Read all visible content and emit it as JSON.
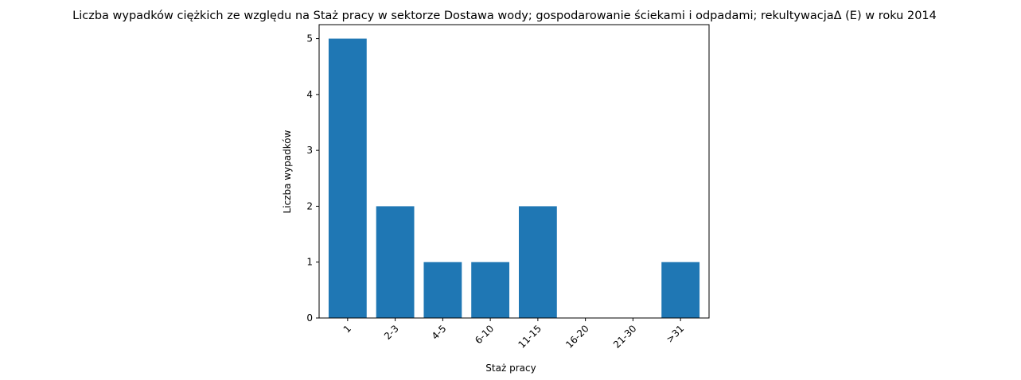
{
  "chart_data": {
    "type": "bar",
    "title": "Liczba wypadków ciężkich ze względu na Staż pracy w sektorze Dostawa wody; gospodarowanie ściekami i odpadami;  rekultywacjaΔ  (E) w roku 2014",
    "xlabel": "Staż pracy",
    "ylabel": "Liczba wypadków",
    "categories": [
      "1",
      "2-3",
      "4-5",
      "6-10",
      "11-15",
      "16-20",
      "21-30",
      ">31"
    ],
    "values": [
      5,
      2,
      1,
      1,
      2,
      0,
      0,
      1
    ],
    "ylim": [
      0,
      5.25
    ],
    "yticks": [
      0,
      1,
      2,
      3,
      4,
      5
    ],
    "grid": false,
    "bar_color": "#1f77b4"
  }
}
